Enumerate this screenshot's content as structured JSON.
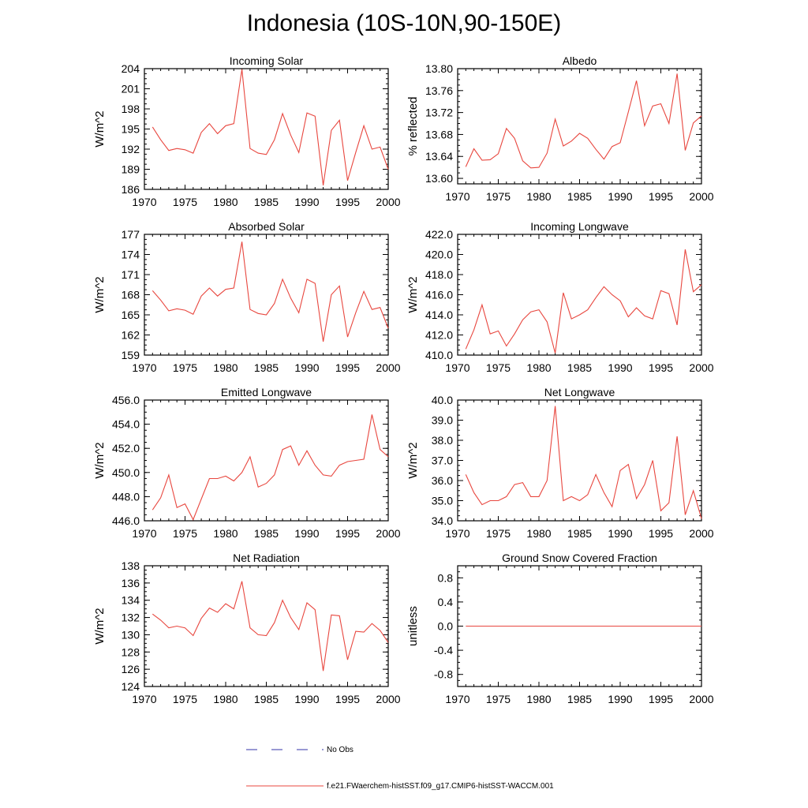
{
  "page_title": "Indonesia (10S-10N,90-150E)",
  "legend": [
    {
      "label": "No Obs",
      "color": "#3333aa",
      "style": "dashed"
    },
    {
      "label": "f.e21.FWaerchem-histSST.f09_g17.CMIP6-histSST-WACCM.001",
      "color": "#e8473f",
      "style": "solid"
    }
  ],
  "chart_data": [
    {
      "type": "line",
      "title": "Incoming Solar",
      "ylabel": "W/m^2",
      "xlim": [
        1970,
        2000
      ],
      "ylim": [
        186,
        204
      ],
      "xticks": [
        1970,
        1975,
        1980,
        1985,
        1990,
        1995,
        2000
      ],
      "yticks": [
        186,
        189,
        192,
        195,
        198,
        201,
        204
      ],
      "ytick_labels": [
        "186",
        "189",
        "192",
        "195",
        "198",
        "201",
        "204"
      ],
      "x": [
        1971,
        1972,
        1973,
        1974,
        1975,
        1976,
        1977,
        1978,
        1979,
        1980,
        1981,
        1982,
        1983,
        1984,
        1985,
        1986,
        1987,
        1988,
        1989,
        1990,
        1991,
        1992,
        1993,
        1994,
        1995,
        1996,
        1997,
        1998,
        1999,
        2000
      ],
      "series": [
        {
          "color": "#e8473f",
          "values": [
            195.3,
            193.4,
            191.8,
            192.1,
            191.9,
            191.4,
            194.5,
            195.8,
            194.3,
            195.5,
            195.8,
            203.9,
            192.1,
            191.4,
            191.2,
            193.4,
            197.3,
            194.1,
            191.5,
            197.4,
            196.9,
            186.6,
            194.8,
            196.3,
            187.3,
            191.5,
            195.5,
            192.0,
            192.3,
            189.0
          ]
        }
      ]
    },
    {
      "type": "line",
      "title": "Albedo",
      "ylabel": "% reflected",
      "xlim": [
        1970,
        2000
      ],
      "ylim": [
        13.59,
        13.8
      ],
      "xticks": [
        1970,
        1975,
        1980,
        1985,
        1990,
        1995,
        2000
      ],
      "yticks": [
        13.6,
        13.64,
        13.68,
        13.72,
        13.76,
        13.8
      ],
      "ytick_labels": [
        "13.60",
        "13.64",
        "13.68",
        "13.72",
        "13.76",
        "13.80"
      ],
      "x": [
        1971,
        1972,
        1973,
        1974,
        1975,
        1976,
        1977,
        1978,
        1979,
        1980,
        1981,
        1982,
        1983,
        1984,
        1985,
        1986,
        1987,
        1988,
        1989,
        1990,
        1991,
        1992,
        1993,
        1994,
        1995,
        1996,
        1997,
        1998,
        1999,
        2000
      ],
      "series": [
        {
          "color": "#e8473f",
          "values": [
            13.621,
            13.654,
            13.633,
            13.634,
            13.645,
            13.691,
            13.673,
            13.632,
            13.619,
            13.62,
            13.646,
            13.708,
            13.659,
            13.668,
            13.682,
            13.673,
            13.653,
            13.635,
            13.658,
            13.665,
            13.721,
            13.778,
            13.696,
            13.732,
            13.736,
            13.7,
            13.791,
            13.651,
            13.701,
            13.714
          ]
        }
      ]
    },
    {
      "type": "line",
      "title": "Absorbed Solar",
      "ylabel": "W/m^2",
      "xlim": [
        1970,
        2000
      ],
      "ylim": [
        159,
        177
      ],
      "xticks": [
        1970,
        1975,
        1980,
        1985,
        1990,
        1995,
        2000
      ],
      "yticks": [
        159,
        162,
        165,
        168,
        171,
        174,
        177
      ],
      "ytick_labels": [
        "159",
        "162",
        "165",
        "168",
        "171",
        "174",
        "177"
      ],
      "x": [
        1971,
        1972,
        1973,
        1974,
        1975,
        1976,
        1977,
        1978,
        1979,
        1980,
        1981,
        1982,
        1983,
        1984,
        1985,
        1986,
        1987,
        1988,
        1989,
        1990,
        1991,
        1992,
        1993,
        1994,
        1995,
        1996,
        1997,
        1998,
        1999,
        2000
      ],
      "series": [
        {
          "color": "#e8473f",
          "values": [
            168.6,
            167.2,
            165.6,
            165.9,
            165.7,
            165.1,
            167.8,
            169.0,
            167.8,
            168.8,
            169.0,
            175.9,
            165.8,
            165.2,
            165.0,
            166.7,
            170.3,
            167.5,
            165.3,
            170.3,
            169.7,
            161.0,
            168.0,
            169.3,
            161.7,
            165.3,
            168.5,
            165.8,
            166.1,
            163.0
          ]
        }
      ]
    },
    {
      "type": "line",
      "title": "Incoming Longwave",
      "ylabel": "W/m^2",
      "xlim": [
        1970,
        2000
      ],
      "ylim": [
        410,
        422
      ],
      "xticks": [
        1970,
        1975,
        1980,
        1985,
        1990,
        1995,
        2000
      ],
      "yticks": [
        410,
        412,
        414,
        416,
        418,
        420,
        422
      ],
      "ytick_labels": [
        "410.0",
        "412.0",
        "414.0",
        "416.0",
        "418.0",
        "420.0",
        "422.0"
      ],
      "x": [
        1971,
        1972,
        1973,
        1974,
        1975,
        1976,
        1977,
        1978,
        1979,
        1980,
        1981,
        1982,
        1983,
        1984,
        1985,
        1986,
        1987,
        1988,
        1989,
        1990,
        1991,
        1992,
        1993,
        1994,
        1995,
        1996,
        1997,
        1998,
        1999,
        2000
      ],
      "series": [
        {
          "color": "#e8473f",
          "values": [
            410.6,
            412.5,
            415.0,
            412.1,
            412.4,
            410.9,
            412.1,
            413.5,
            414.3,
            414.5,
            413.3,
            410.2,
            416.2,
            413.6,
            414.0,
            414.5,
            415.7,
            416.8,
            416.0,
            415.4,
            413.8,
            414.7,
            413.9,
            413.6,
            416.4,
            416.1,
            413.0,
            420.5,
            416.3,
            417.0
          ]
        }
      ]
    },
    {
      "type": "line",
      "title": "Emitted Longwave",
      "ylabel": "W/m^2",
      "xlim": [
        1970,
        2000
      ],
      "ylim": [
        446,
        456
      ],
      "xticks": [
        1970,
        1975,
        1980,
        1985,
        1990,
        1995,
        2000
      ],
      "yticks": [
        446,
        448,
        450,
        452,
        454,
        456
      ],
      "ytick_labels": [
        "446.0",
        "448.0",
        "450.0",
        "452.0",
        "454.0",
        "456.0"
      ],
      "x": [
        1971,
        1972,
        1973,
        1974,
        1975,
        1976,
        1977,
        1978,
        1979,
        1980,
        1981,
        1982,
        1983,
        1984,
        1985,
        1986,
        1987,
        1988,
        1989,
        1990,
        1991,
        1992,
        1993,
        1994,
        1995,
        1996,
        1997,
        1998,
        1999,
        2000
      ],
      "series": [
        {
          "color": "#e8473f",
          "values": [
            446.9,
            447.9,
            449.8,
            447.1,
            447.4,
            446.1,
            447.8,
            449.5,
            449.5,
            449.7,
            449.3,
            450.0,
            451.3,
            448.8,
            449.1,
            449.8,
            451.9,
            452.2,
            450.6,
            451.8,
            450.6,
            449.8,
            449.7,
            450.6,
            450.9,
            451.0,
            451.1,
            454.8,
            451.9,
            451.3
          ]
        }
      ]
    },
    {
      "type": "line",
      "title": "Net Longwave",
      "ylabel": "W/m^2",
      "xlim": [
        1970,
        2000
      ],
      "ylim": [
        34,
        40
      ],
      "xticks": [
        1970,
        1975,
        1980,
        1985,
        1990,
        1995,
        2000
      ],
      "yticks": [
        34,
        35,
        36,
        37,
        38,
        39,
        40
      ],
      "ytick_labels": [
        "34.0",
        "35.0",
        "36.0",
        "37.0",
        "38.0",
        "39.0",
        "40.0"
      ],
      "x": [
        1971,
        1972,
        1973,
        1974,
        1975,
        1976,
        1977,
        1978,
        1979,
        1980,
        1981,
        1982,
        1983,
        1984,
        1985,
        1986,
        1987,
        1988,
        1989,
        1990,
        1991,
        1992,
        1993,
        1994,
        1995,
        1996,
        1997,
        1998,
        1999,
        2000
      ],
      "series": [
        {
          "color": "#e8473f",
          "values": [
            36.3,
            35.4,
            34.8,
            35.0,
            35.0,
            35.2,
            35.8,
            35.9,
            35.2,
            35.2,
            36.0,
            39.7,
            35.0,
            35.2,
            35.0,
            35.3,
            36.3,
            35.4,
            34.7,
            36.5,
            36.8,
            35.1,
            35.8,
            37.0,
            34.5,
            34.9,
            38.2,
            34.3,
            35.5,
            34.1
          ]
        }
      ]
    },
    {
      "type": "line",
      "title": "Net Radiation",
      "ylabel": "W/m^2",
      "xlim": [
        1970,
        2000
      ],
      "ylim": [
        124,
        138
      ],
      "xticks": [
        1970,
        1975,
        1980,
        1985,
        1990,
        1995,
        2000
      ],
      "yticks": [
        124,
        126,
        128,
        130,
        132,
        134,
        136,
        138
      ],
      "ytick_labels": [
        "124",
        "126",
        "128",
        "130",
        "132",
        "134",
        "136",
        "138"
      ],
      "x": [
        1971,
        1972,
        1973,
        1974,
        1975,
        1976,
        1977,
        1978,
        1979,
        1980,
        1981,
        1982,
        1983,
        1984,
        1985,
        1986,
        1987,
        1988,
        1989,
        1990,
        1991,
        1992,
        1993,
        1994,
        1995,
        1996,
        1997,
        1998,
        1999,
        2000
      ],
      "series": [
        {
          "color": "#e8473f",
          "values": [
            132.4,
            131.7,
            130.8,
            131.0,
            130.8,
            129.9,
            131.9,
            133.1,
            132.6,
            133.6,
            133.0,
            136.2,
            130.8,
            130.0,
            129.9,
            131.4,
            134.0,
            132.0,
            130.6,
            133.7,
            132.9,
            125.8,
            132.3,
            132.2,
            127.1,
            130.4,
            130.3,
            131.3,
            130.5,
            129.1
          ]
        }
      ]
    },
    {
      "type": "line",
      "title": "Ground Snow Covered Fraction",
      "ylabel": "unitless",
      "xlim": [
        1970,
        2000
      ],
      "ylim": [
        -1.0,
        1.0
      ],
      "xticks": [
        1970,
        1975,
        1980,
        1985,
        1990,
        1995,
        2000
      ],
      "yticks": [
        -0.8,
        -0.4,
        0.0,
        0.4,
        0.8
      ],
      "ytick_labels": [
        "-0.8",
        "-0.4",
        "0.0",
        "0.4",
        "0.8"
      ],
      "x": [
        1971,
        1972,
        1973,
        1974,
        1975,
        1976,
        1977,
        1978,
        1979,
        1980,
        1981,
        1982,
        1983,
        1984,
        1985,
        1986,
        1987,
        1988,
        1989,
        1990,
        1991,
        1992,
        1993,
        1994,
        1995,
        1996,
        1997,
        1998,
        1999,
        2000
      ],
      "series": [
        {
          "color": "#e8473f",
          "values": [
            0,
            0,
            0,
            0,
            0,
            0,
            0,
            0,
            0,
            0,
            0,
            0,
            0,
            0,
            0,
            0,
            0,
            0,
            0,
            0,
            0,
            0,
            0,
            0,
            0,
            0,
            0,
            0,
            0,
            0
          ]
        }
      ]
    }
  ]
}
